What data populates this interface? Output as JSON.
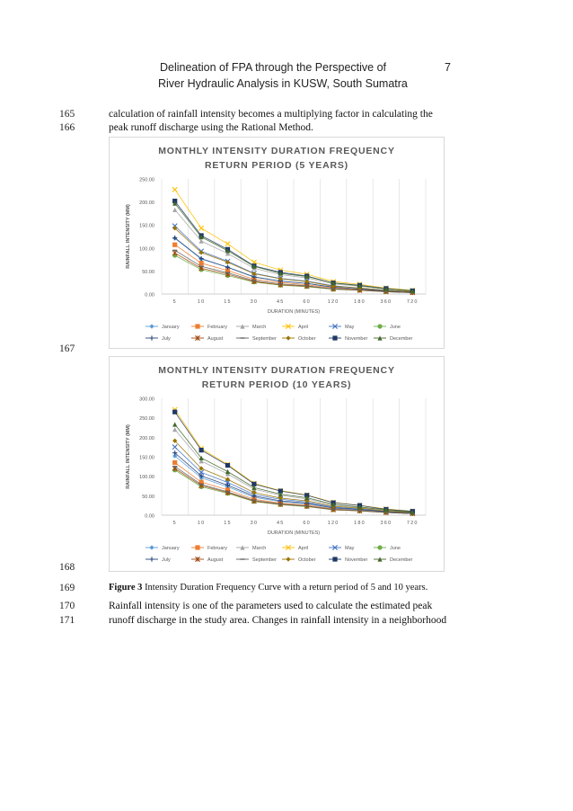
{
  "header": {
    "line1": "Delineation of FPA through the Perspective of",
    "line2": "River Hydraulic Analysis in KUSW, South Sumatra",
    "page_number": "7"
  },
  "lines": [
    {
      "num": "165",
      "text": "calculation of rainfall intensity becomes a multiplying factor in calculating the"
    },
    {
      "num": "166",
      "text": "peak runoff discharge using the Rational Method."
    },
    {
      "num": "167",
      "text": ""
    },
    {
      "num": "168",
      "text": ""
    },
    {
      "num": "169",
      "text": ""
    },
    {
      "num": "170",
      "text": "Rainfall intensity is one of the parameters used to calculate the estimated peak"
    },
    {
      "num": "171",
      "text": "runoff discharge in the study area. Changes in rainfall intensity in a neighborhood"
    }
  ],
  "caption": {
    "label": "Figure 3",
    "text": " Intensity Duration Frequency Curve with a return period of 5 and 10 years."
  },
  "chart_data": [
    {
      "type": "line",
      "title": "MONTHLY INTENSITY DURATION FREQUENCY RETURN PERIOD (5 YEARS)",
      "title_lines": [
        "MONTHLY INTENSITY DURATION FREQUENCY",
        "RETURN PERIOD (5 YEARS)"
      ],
      "xlabel": "DURATION (MINUTES)",
      "ylabel": "RAINFALL INTENSITY (MM)",
      "categories": [
        "5",
        "10",
        "15",
        "30",
        "45",
        "60",
        "120",
        "180",
        "360",
        "720"
      ],
      "ylim": [
        0,
        250
      ],
      "yticks": [
        "0.00",
        "50.00",
        "100.00",
        "150.00",
        "200.00",
        "250.00"
      ],
      "grid": "vertical",
      "legend": "bottom",
      "series": [
        {
          "name": "January",
          "color": "#5b9bd5",
          "marker": "diamond",
          "values": [
            121,
            76,
            58,
            37,
            28,
            23,
            14,
            11,
            7,
            4
          ]
        },
        {
          "name": "February",
          "color": "#ed7d31",
          "marker": "square",
          "values": [
            107,
            67,
            51,
            32,
            25,
            20,
            13,
            10,
            6,
            4
          ]
        },
        {
          "name": "March",
          "color": "#a5a5a5",
          "marker": "triangle",
          "values": [
            183,
            115,
            88,
            56,
            42,
            35,
            22,
            17,
            11,
            7
          ]
        },
        {
          "name": "April",
          "color": "#ffc000",
          "marker": "x",
          "values": [
            227,
            143,
            109,
            69,
            52,
            43,
            27,
            21,
            13,
            8
          ]
        },
        {
          "name": "May",
          "color": "#4472c4",
          "marker": "x",
          "values": [
            148,
            93,
            71,
            45,
            34,
            28,
            18,
            13,
            8,
            5
          ]
        },
        {
          "name": "June",
          "color": "#70ad47",
          "marker": "circle",
          "values": [
            84,
            53,
            40,
            26,
            19,
            16,
            10,
            8,
            5,
            3
          ]
        },
        {
          "name": "July",
          "color": "#264478",
          "marker": "plus",
          "values": [
            122,
            77,
            58,
            37,
            28,
            23,
            15,
            11,
            7,
            4
          ]
        },
        {
          "name": "August",
          "color": "#9e480e",
          "marker": "star",
          "values": [
            89,
            56,
            43,
            27,
            20,
            17,
            11,
            8,
            5,
            3
          ]
        },
        {
          "name": "September",
          "color": "#636363",
          "marker": "dash",
          "values": [
            95,
            60,
            46,
            29,
            22,
            18,
            11,
            9,
            5,
            3
          ]
        },
        {
          "name": "October",
          "color": "#997300",
          "marker": "diamond",
          "values": [
            143,
            90,
            69,
            44,
            33,
            27,
            17,
            13,
            8,
            5
          ]
        },
        {
          "name": "November",
          "color": "#1f3864",
          "marker": "square",
          "values": [
            202,
            127,
            97,
            61,
            47,
            39,
            24,
            19,
            12,
            7
          ]
        },
        {
          "name": "December",
          "color": "#43682b",
          "marker": "triangle",
          "values": [
            197,
            124,
            94,
            60,
            45,
            38,
            24,
            18,
            11,
            7
          ]
        }
      ]
    },
    {
      "type": "line",
      "title": "MONTHLY INTENSITY DURATION FREQUENCY RETURN PERIOD (10 YEARS)",
      "title_lines": [
        "MONTHLY INTENSITY DURATION FREQUENCY",
        "RETURN PERIOD (10 YEARS)"
      ],
      "xlabel": "DURATION (MINUTES)",
      "ylabel": "RAINFALL INTENSITY (MM)",
      "categories": [
        "5",
        "10",
        "15",
        "30",
        "45",
        "60",
        "120",
        "180",
        "360",
        "720"
      ],
      "ylim": [
        0,
        300
      ],
      "yticks": [
        "0.00",
        "50.00",
        "100.00",
        "150.00",
        "200.00",
        "250.00",
        "300.00"
      ],
      "grid": "vertical",
      "legend": "bottom",
      "series": [
        {
          "name": "January",
          "color": "#5b9bd5",
          "marker": "diamond",
          "values": [
            152,
            96,
            73,
            46,
            35,
            29,
            18,
            14,
            9,
            5
          ]
        },
        {
          "name": "February",
          "color": "#ed7d31",
          "marker": "square",
          "values": [
            135,
            85,
            65,
            41,
            31,
            26,
            16,
            12,
            8,
            5
          ]
        },
        {
          "name": "March",
          "color": "#a5a5a5",
          "marker": "triangle",
          "values": [
            220,
            139,
            106,
            67,
            51,
            42,
            26,
            20,
            13,
            8
          ]
        },
        {
          "name": "April",
          "color": "#ffc000",
          "marker": "x",
          "values": [
            271,
            171,
            130,
            82,
            63,
            52,
            33,
            25,
            16,
            10
          ]
        },
        {
          "name": "May",
          "color": "#4472c4",
          "marker": "x",
          "values": [
            175,
            110,
            84,
            53,
            41,
            34,
            21,
            16,
            10,
            6
          ]
        },
        {
          "name": "June",
          "color": "#70ad47",
          "marker": "circle",
          "values": [
            116,
            73,
            56,
            35,
            27,
            22,
            14,
            11,
            7,
            4
          ]
        },
        {
          "name": "July",
          "color": "#264478",
          "marker": "plus",
          "values": [
            160,
            101,
            77,
            49,
            37,
            31,
            19,
            15,
            9,
            6
          ]
        },
        {
          "name": "August",
          "color": "#9e480e",
          "marker": "star",
          "values": [
            120,
            76,
            58,
            36,
            28,
            23,
            14,
            11,
            7,
            4
          ]
        },
        {
          "name": "September",
          "color": "#636363",
          "marker": "dash",
          "values": [
            125,
            79,
            60,
            38,
            29,
            24,
            15,
            12,
            7,
            4
          ]
        },
        {
          "name": "October",
          "color": "#997300",
          "marker": "diamond",
          "values": [
            191,
            120,
            92,
            58,
            44,
            37,
            23,
            18,
            11,
            7
          ]
        },
        {
          "name": "November",
          "color": "#1f3864",
          "marker": "square",
          "values": [
            265,
            167,
            128,
            80,
            62,
            51,
            32,
            25,
            15,
            10
          ]
        },
        {
          "name": "December",
          "color": "#43682b",
          "marker": "triangle",
          "values": [
            233,
            147,
            112,
            71,
            54,
            45,
            28,
            21,
            14,
            8
          ]
        }
      ]
    }
  ]
}
